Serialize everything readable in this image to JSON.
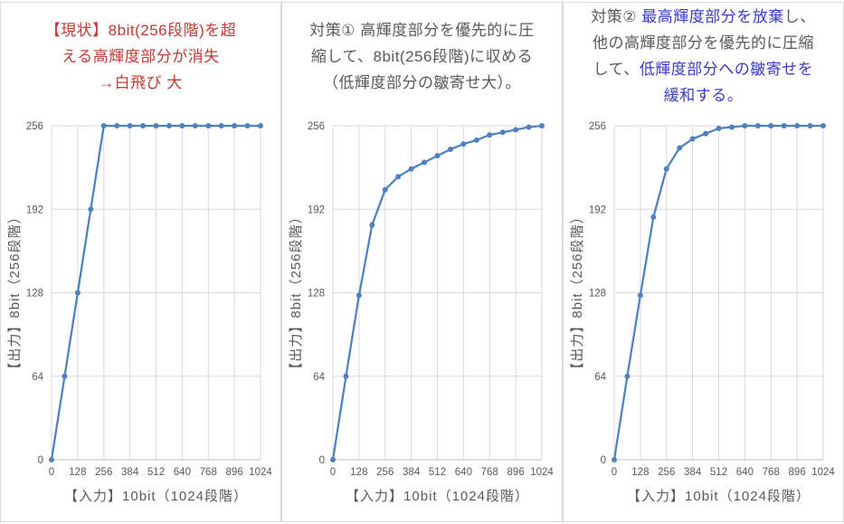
{
  "colors": {
    "series_line": "#4E81BD",
    "marker": "#4E81BD",
    "title_red": "#C13B32",
    "title_gray": "#595959",
    "title_blue": "#3A3AC8",
    "tick_label": "#595959",
    "axis_title": "#595959",
    "gridline": "#D9D9D9",
    "axis_line": "#BFBFBF",
    "panel_border": "#D9D9D9",
    "background": "#FFFFFF"
  },
  "panels": [
    {
      "title_lines": [
        [
          {
            "t": "【現状】8bit(256段階)を超",
            "c": "red"
          }
        ],
        [
          {
            "t": "える高輝度部分が消失",
            "c": "red"
          }
        ],
        [
          {
            "t": "→白飛び 大",
            "c": "red"
          }
        ]
      ]
    },
    {
      "title_lines": [
        [
          {
            "t": "対策① 高輝度部分を優先的に圧",
            "c": "gray"
          }
        ],
        [
          {
            "t": "縮して、8bit(256段階)に収める",
            "c": "gray"
          }
        ],
        [
          {
            "t": "（低輝度部分の皺寄せ大）。",
            "c": "gray"
          }
        ]
      ]
    },
    {
      "title_lines": [
        [
          {
            "t": "対策② ",
            "c": "gray"
          },
          {
            "t": "最高輝度部分を放棄",
            "c": "blue"
          },
          {
            "t": "し、",
            "c": "gray"
          }
        ],
        [
          {
            "t": "他の高輝度部分を優先的に圧縮",
            "c": "gray"
          }
        ],
        [
          {
            "t": "して、",
            "c": "gray"
          },
          {
            "t": "低輝度部分への皺寄せを",
            "c": "blue"
          }
        ],
        [
          {
            "t": "緩和する。",
            "c": "blue"
          }
        ]
      ]
    }
  ],
  "chart_data": [
    {
      "type": "line",
      "title": "【現状】8bit(256段階)を超える高輝度部分が消失 →白飛び 大",
      "x": [
        0,
        64,
        128,
        192,
        256,
        320,
        384,
        448,
        512,
        576,
        640,
        704,
        768,
        832,
        896,
        960,
        1024
      ],
      "values": [
        0,
        64,
        128,
        192,
        256,
        256,
        256,
        256,
        256,
        256,
        256,
        256,
        256,
        256,
        256,
        256,
        256
      ],
      "xlabel": "【入力】10bit（1024段階）",
      "ylabel": "【出力】8bit（256段階）",
      "x_ticks": [
        0,
        128,
        256,
        384,
        512,
        640,
        768,
        896,
        1024
      ],
      "y_ticks": [
        0,
        64,
        128,
        192,
        256
      ],
      "xlim": [
        0,
        1024
      ],
      "ylim": [
        0,
        256
      ],
      "grid": true,
      "legend": false,
      "marker": "circle"
    },
    {
      "type": "line",
      "title": "対策① 高輝度部分を優先的に圧縮して、8bit(256段階)に収める（低輝度部分の皺寄せ大）。",
      "x": [
        0,
        64,
        128,
        192,
        256,
        320,
        384,
        448,
        512,
        576,
        640,
        704,
        768,
        832,
        896,
        960,
        1024
      ],
      "values": [
        0,
        64,
        126,
        180,
        207,
        217,
        223,
        228,
        233,
        238,
        242,
        245,
        249,
        251,
        253,
        255,
        256
      ],
      "xlabel": "【入力】10bit（1024段階）",
      "ylabel": "【出力】8bit（256段階）",
      "x_ticks": [
        0,
        128,
        256,
        384,
        512,
        640,
        768,
        896,
        1024
      ],
      "y_ticks": [
        0,
        64,
        128,
        192,
        256
      ],
      "xlim": [
        0,
        1024
      ],
      "ylim": [
        0,
        256
      ],
      "grid": true,
      "legend": false,
      "marker": "circle"
    },
    {
      "type": "line",
      "title": "対策② 最高輝度部分を放棄し、他の高輝度部分を優先的に圧縮して、低輝度部分への皺寄せを緩和する。",
      "x": [
        0,
        64,
        128,
        192,
        256,
        320,
        384,
        448,
        512,
        576,
        640,
        704,
        768,
        832,
        896,
        960,
        1024
      ],
      "values": [
        0,
        64,
        126,
        186,
        223,
        239,
        246,
        250,
        254,
        255,
        256,
        256,
        256,
        256,
        256,
        256,
        256
      ],
      "xlabel": "【入力】10bit（1024段階）",
      "ylabel": "【出力】8bit（256段階）",
      "x_ticks": [
        0,
        128,
        256,
        384,
        512,
        640,
        768,
        896,
        1024
      ],
      "y_ticks": [
        0,
        64,
        128,
        192,
        256
      ],
      "xlim": [
        0,
        1024
      ],
      "ylim": [
        0,
        256
      ],
      "grid": true,
      "legend": false,
      "marker": "circle"
    }
  ]
}
